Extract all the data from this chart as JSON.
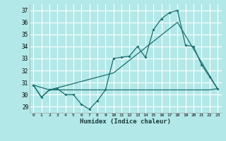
{
  "xlabel": "Humidex (Indice chaleur)",
  "xlim": [
    -0.5,
    23.5
  ],
  "ylim": [
    28.5,
    37.5
  ],
  "yticks": [
    29,
    30,
    31,
    32,
    33,
    34,
    35,
    36,
    37
  ],
  "xticks": [
    0,
    1,
    2,
    3,
    4,
    5,
    6,
    7,
    8,
    9,
    10,
    11,
    12,
    13,
    14,
    15,
    16,
    17,
    18,
    19,
    20,
    21,
    22,
    23
  ],
  "bg_color": "#b3e8e8",
  "line_color": "#1a6e6e",
  "grid_color": "#ffffff",
  "curve1_x": [
    0,
    1,
    2,
    3,
    4,
    5,
    6,
    7,
    8,
    9,
    10,
    11,
    12,
    13,
    14,
    15,
    16,
    17,
    18,
    19,
    20,
    21,
    22,
    23
  ],
  "curve1_y": [
    30.8,
    29.8,
    30.4,
    30.5,
    30.0,
    30.0,
    29.2,
    28.8,
    29.5,
    30.4,
    33.0,
    33.1,
    33.2,
    34.0,
    33.1,
    35.4,
    36.3,
    36.8,
    37.0,
    34.1,
    34.0,
    32.5,
    31.5,
    30.5
  ],
  "curve2_x": [
    0,
    1,
    2,
    3,
    4,
    5,
    6,
    7,
    8,
    9,
    10,
    11,
    12,
    13,
    14,
    15,
    16,
    17,
    18,
    19,
    20,
    21,
    22,
    23
  ],
  "curve2_y": [
    30.8,
    29.8,
    30.4,
    30.4,
    30.4,
    30.4,
    30.4,
    30.4,
    30.4,
    30.4,
    30.4,
    30.4,
    30.4,
    30.4,
    30.4,
    30.4,
    30.4,
    30.4,
    30.4,
    30.4,
    30.4,
    30.4,
    30.4,
    30.5
  ],
  "curve3_x": [
    0,
    2,
    10,
    18,
    23
  ],
  "curve3_y": [
    30.8,
    30.4,
    31.8,
    36.0,
    30.5
  ]
}
